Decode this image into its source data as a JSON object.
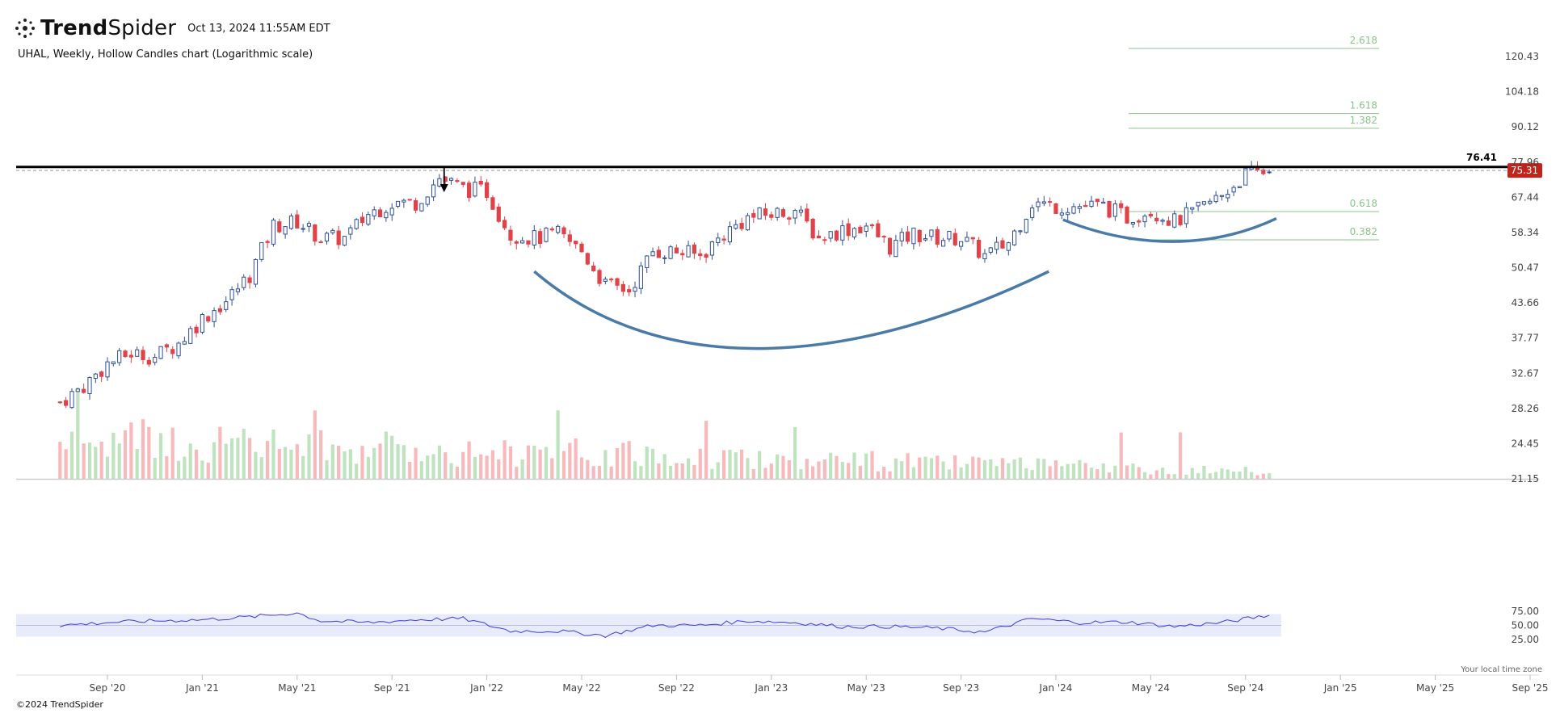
{
  "header": {
    "brand_bold": "Trend",
    "brand_light": "Spider",
    "timestamp": "Oct 13, 2024 11:55AM EDT",
    "subtitle": "UHAL, Weekly, Hollow Candles chart (Logarithmic scale)"
  },
  "footer": {
    "copyright": "©2024 TrendSpider",
    "timezone_note": "Your local time zone"
  },
  "colors": {
    "up": "#2f4f9a",
    "down": "#e0424a",
    "vol_up": "#bfe3bf",
    "vol_down": "#f7b9bb",
    "fib": "#8bc48b",
    "resistance": "#000000",
    "curve": "#4a7aa8",
    "rsi_line": "#3b3bd6",
    "rsi_band": "#e8ebfa",
    "price_badge": "#c0241c"
  },
  "chart_data": {
    "type": "candlestick",
    "symbol": "UHAL",
    "interval": "Weekly",
    "scale": "log",
    "price_axis_ticks": [
      120.43,
      104.18,
      90.12,
      77.96,
      67.44,
      58.34,
      50.47,
      43.66,
      37.77,
      32.67,
      28.26,
      24.45,
      21.15
    ],
    "x_axis_ticks": [
      "Sep '20",
      "Jan '21",
      "May '21",
      "Sep '21",
      "Jan '22",
      "May '22",
      "Sep '22",
      "Jan '23",
      "May '23",
      "Sep '23",
      "Jan '24",
      "May '24",
      "Sep '24",
      "Jan '25",
      "May '25",
      "Sep '25"
    ],
    "resistance_level": 76.41,
    "last_price": 75.31,
    "fib_levels": [
      {
        "label": "2.618",
        "price": 124.5
      },
      {
        "label": "1.618",
        "price": 95.2
      },
      {
        "label": "1.382",
        "price": 89.6
      },
      {
        "label": "0.618",
        "price": 63.6
      },
      {
        "label": "0.382",
        "price": 56.6
      }
    ],
    "annotations": [
      {
        "type": "arrow-down",
        "date": "Nov '21",
        "price": 77.5
      },
      {
        "type": "cup-curve",
        "from": "Mar '22",
        "to": "Dec '23",
        "bottom": 37.2
      },
      {
        "type": "handle-curve",
        "from": "Jan '24",
        "to": "Oct '24",
        "bottom": 57.0
      }
    ],
    "price_path": [
      {
        "date": "2020-07",
        "price": 29
      },
      {
        "date": "2020-08",
        "price": 31
      },
      {
        "date": "2020-09",
        "price": 34
      },
      {
        "date": "2020-10",
        "price": 35.5
      },
      {
        "date": "2020-11",
        "price": 35
      },
      {
        "date": "2020-12",
        "price": 37
      },
      {
        "date": "2021-01",
        "price": 41
      },
      {
        "date": "2021-02",
        "price": 44
      },
      {
        "date": "2021-03",
        "price": 49
      },
      {
        "date": "2021-04",
        "price": 60
      },
      {
        "date": "2021-05",
        "price": 61
      },
      {
        "date": "2021-06",
        "price": 57
      },
      {
        "date": "2021-07",
        "price": 57
      },
      {
        "date": "2021-08",
        "price": 63
      },
      {
        "date": "2021-09",
        "price": 66
      },
      {
        "date": "2021-10",
        "price": 66
      },
      {
        "date": "2021-11",
        "price": 73
      },
      {
        "date": "2021-12",
        "price": 70
      },
      {
        "date": "2022-01",
        "price": 69
      },
      {
        "date": "2022-02",
        "price": 58
      },
      {
        "date": "2022-03",
        "price": 57
      },
      {
        "date": "2022-04",
        "price": 58
      },
      {
        "date": "2022-05",
        "price": 54
      },
      {
        "date": "2022-06",
        "price": 47
      },
      {
        "date": "2022-07",
        "price": 46
      },
      {
        "date": "2022-08",
        "price": 54
      },
      {
        "date": "2022-09",
        "price": 54
      },
      {
        "date": "2022-10",
        "price": 53
      },
      {
        "date": "2022-11",
        "price": 58
      },
      {
        "date": "2022-12",
        "price": 62
      },
      {
        "date": "2023-01",
        "price": 63
      },
      {
        "date": "2023-02",
        "price": 64
      },
      {
        "date": "2023-03",
        "price": 57
      },
      {
        "date": "2023-04",
        "price": 59
      },
      {
        "date": "2023-05",
        "price": 60
      },
      {
        "date": "2023-06",
        "price": 55
      },
      {
        "date": "2023-07",
        "price": 58
      },
      {
        "date": "2023-08",
        "price": 57
      },
      {
        "date": "2023-09",
        "price": 57
      },
      {
        "date": "2023-10",
        "price": 53
      },
      {
        "date": "2023-11",
        "price": 56
      },
      {
        "date": "2023-12",
        "price": 66
      },
      {
        "date": "2024-01",
        "price": 65
      },
      {
        "date": "2024-02",
        "price": 65
      },
      {
        "date": "2024-03",
        "price": 65
      },
      {
        "date": "2024-04",
        "price": 62
      },
      {
        "date": "2024-05",
        "price": 64
      },
      {
        "date": "2024-06",
        "price": 61
      },
      {
        "date": "2024-07",
        "price": 64
      },
      {
        "date": "2024-08",
        "price": 68
      },
      {
        "date": "2024-09",
        "price": 74
      },
      {
        "date": "2024-10",
        "price": 75.31
      }
    ],
    "rsi": {
      "axis_ticks": [
        75.0,
        50.0,
        25.0
      ],
      "band": [
        30,
        70
      ],
      "path": [
        {
          "date": "2020-07",
          "value": 50
        },
        {
          "date": "2020-09",
          "value": 55
        },
        {
          "date": "2020-11",
          "value": 58
        },
        {
          "date": "2021-01",
          "value": 60
        },
        {
          "date": "2021-03",
          "value": 65
        },
        {
          "date": "2021-05",
          "value": 72
        },
        {
          "date": "2021-06",
          "value": 58
        },
        {
          "date": "2021-08",
          "value": 55
        },
        {
          "date": "2021-10",
          "value": 60
        },
        {
          "date": "2021-12",
          "value": 62
        },
        {
          "date": "2022-02",
          "value": 40
        },
        {
          "date": "2022-04",
          "value": 40
        },
        {
          "date": "2022-06",
          "value": 32
        },
        {
          "date": "2022-08",
          "value": 50
        },
        {
          "date": "2022-10",
          "value": 50
        },
        {
          "date": "2022-12",
          "value": 58
        },
        {
          "date": "2023-02",
          "value": 55
        },
        {
          "date": "2023-04",
          "value": 48
        },
        {
          "date": "2023-06",
          "value": 48
        },
        {
          "date": "2023-08",
          "value": 45
        },
        {
          "date": "2023-10",
          "value": 38
        },
        {
          "date": "2023-12",
          "value": 62
        },
        {
          "date": "2024-02",
          "value": 55
        },
        {
          "date": "2024-04",
          "value": 56
        },
        {
          "date": "2024-06",
          "value": 48
        },
        {
          "date": "2024-08",
          "value": 55
        },
        {
          "date": "2024-10",
          "value": 68
        }
      ]
    }
  }
}
